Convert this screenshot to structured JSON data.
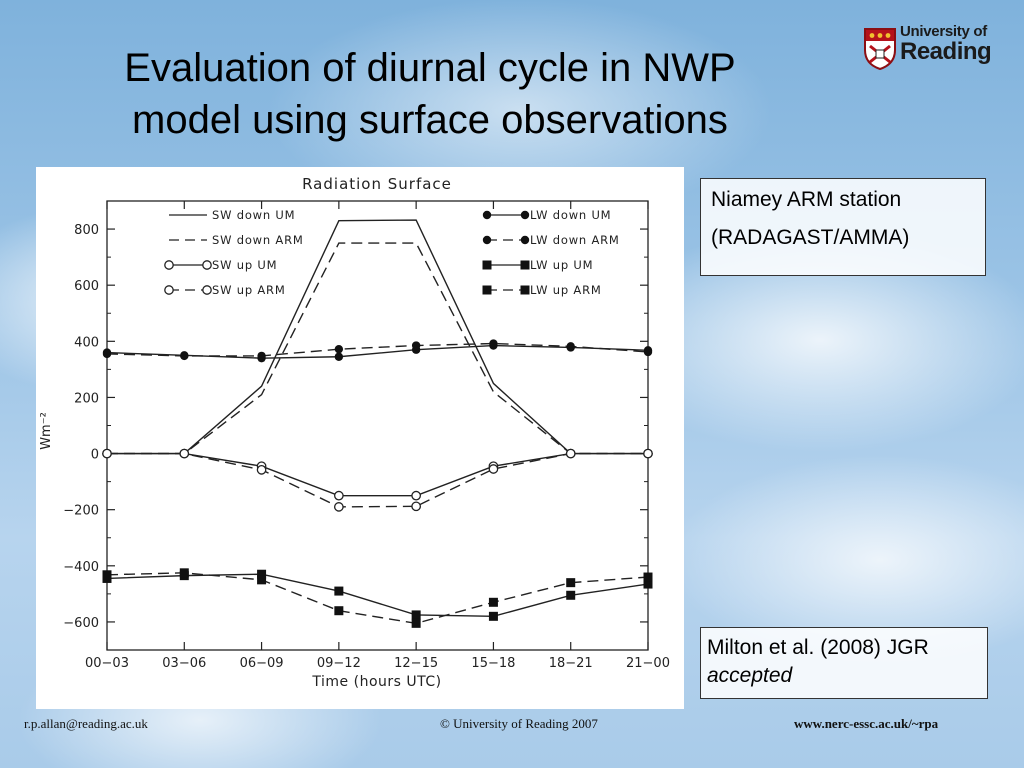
{
  "slide": {
    "title_line1": "Evaluation of diurnal cycle in NWP",
    "title_line2": "model using surface observations",
    "logo_line1": "University of",
    "logo_line2": "Reading",
    "info_line1": "Niamey ARM station",
    "info_line2": "(RADAGAST/AMMA)",
    "ref_line1": "Milton et al. (2008) JGR",
    "ref_line2": "accepted",
    "footer_left": "r.p.allan@reading.ac.uk",
    "footer_center": "© University of Reading 2007",
    "footer_right": "www.nerc-essc.ac.uk/~rpa"
  },
  "chart_data": {
    "type": "line",
    "title": "Radiation  Surface",
    "xlabel": "Time (hours UTC)",
    "ylabel": "Wm⁻²",
    "ylim": [
      -700,
      900
    ],
    "yticks": [
      800,
      600,
      400,
      200,
      0,
      -200,
      -400,
      -600
    ],
    "ytick_labels": [
      "800",
      "600",
      "400",
      "200",
      "0",
      "−200",
      "−400",
      "−600"
    ],
    "categories": [
      "00−03",
      "03−06",
      "06−09",
      "09−12",
      "12−15",
      "15−18",
      "18−21",
      "21−00"
    ],
    "series": [
      {
        "name": "SW down UM",
        "dash": false,
        "marker": "none",
        "values": [
          0,
          0,
          240,
          830,
          832,
          250,
          0,
          0
        ]
      },
      {
        "name": "SW down ARM",
        "dash": true,
        "marker": "none",
        "values": [
          0,
          0,
          210,
          750,
          750,
          220,
          0,
          0
        ]
      },
      {
        "name": "SW up UM",
        "dash": false,
        "marker": "circle-open",
        "values": [
          0,
          0,
          -45,
          -150,
          -150,
          -45,
          0,
          0
        ]
      },
      {
        "name": "SW up ARM",
        "dash": true,
        "marker": "circle-open",
        "values": [
          0,
          0,
          -58,
          -190,
          -188,
          -55,
          0,
          0
        ]
      },
      {
        "name": "LW down UM",
        "dash": false,
        "marker": "circle-filled",
        "values": [
          360,
          350,
          340,
          345,
          370,
          385,
          378,
          368
        ]
      },
      {
        "name": "LW down ARM",
        "dash": true,
        "marker": "circle-filled",
        "values": [
          355,
          348,
          348,
          372,
          385,
          392,
          382,
          362
        ]
      },
      {
        "name": "LW up UM",
        "dash": false,
        "marker": "square",
        "values": [
          -445,
          -435,
          -430,
          -490,
          -575,
          -580,
          -505,
          -465
        ]
      },
      {
        "name": "LW up ARM",
        "dash": true,
        "marker": "square",
        "values": [
          -432,
          -425,
          -450,
          -560,
          -605,
          -530,
          -460,
          -440
        ]
      }
    ]
  }
}
